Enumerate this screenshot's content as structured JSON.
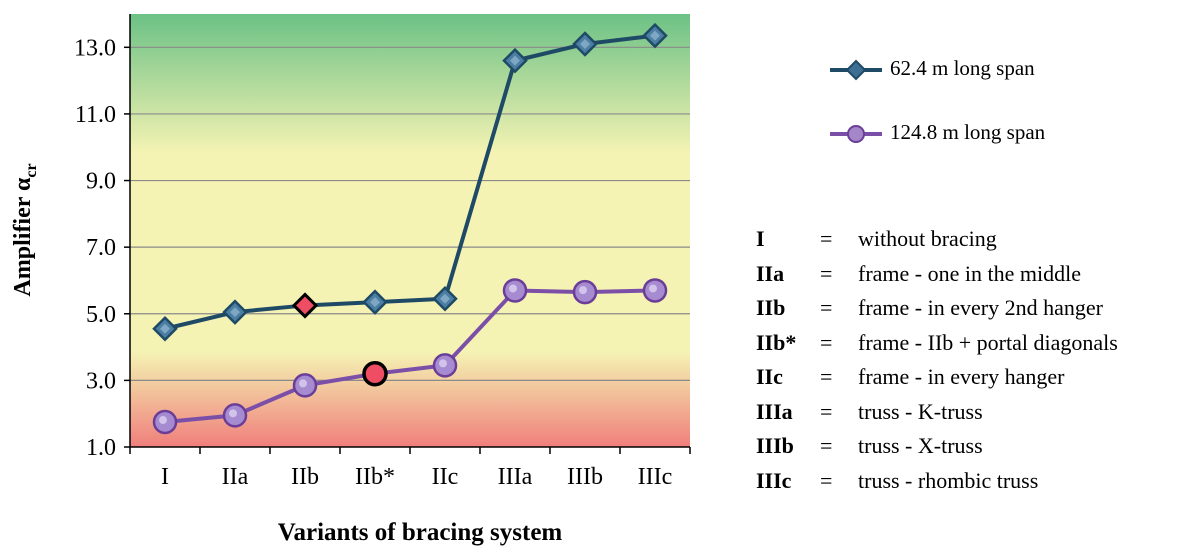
{
  "chart_data": {
    "type": "line",
    "ylabel": "Amplifier α",
    "ylabel_sub": "cr",
    "xlabel": "Variants of bracing system",
    "categories": [
      "I",
      "IIa",
      "IIb",
      "IIb*",
      "IIc",
      "IIIa",
      "IIIb",
      "IIIc"
    ],
    "ylim": [
      1.0,
      14.0
    ],
    "yticks": [
      "1.0",
      "3.0",
      "5.0",
      "7.0",
      "9.0",
      "11.0",
      "13.0"
    ],
    "grid": true,
    "background_zones": [
      {
        "name": "green",
        "color": "#6cc185"
      },
      {
        "name": "yellow",
        "color": "#f4f3b3"
      },
      {
        "name": "red",
        "color": "#f07f7c"
      }
    ],
    "series": [
      {
        "name": "62.4 m long span",
        "color": "#1f4a66",
        "marker": "diamond",
        "values": [
          4.55,
          5.05,
          5.25,
          5.35,
          5.45,
          12.6,
          13.1,
          13.35
        ],
        "highlight_index": 2
      },
      {
        "name": "124.8 m long span",
        "color": "#7b4fa8",
        "marker": "circle",
        "values": [
          1.75,
          1.95,
          2.85,
          3.2,
          3.45,
          5.7,
          5.65,
          5.7
        ],
        "highlight_index": 3
      }
    ],
    "highlight_color": "#ee4d63"
  },
  "abbreviations": [
    {
      "code": "I",
      "eq": "=",
      "desc": "without bracing"
    },
    {
      "code": "IIa",
      "eq": "=",
      "desc": "frame  -  one in the middle"
    },
    {
      "code": "IIb",
      "eq": "=",
      "desc": "frame  -  in every 2nd hanger"
    },
    {
      "code": "IIb*",
      "eq": "=",
      "desc": "frame  -  IIb + portal diagonals"
    },
    {
      "code": "IIc",
      "eq": "=",
      "desc": "frame  -  in every hanger"
    },
    {
      "code": "IIIa",
      "eq": "=",
      "desc": "truss   -  K-truss"
    },
    {
      "code": "IIIb",
      "eq": "=",
      "desc": "truss   -  X-truss"
    },
    {
      "code": "IIIc",
      "eq": "=",
      "desc": "truss   -  rhombic truss"
    }
  ]
}
